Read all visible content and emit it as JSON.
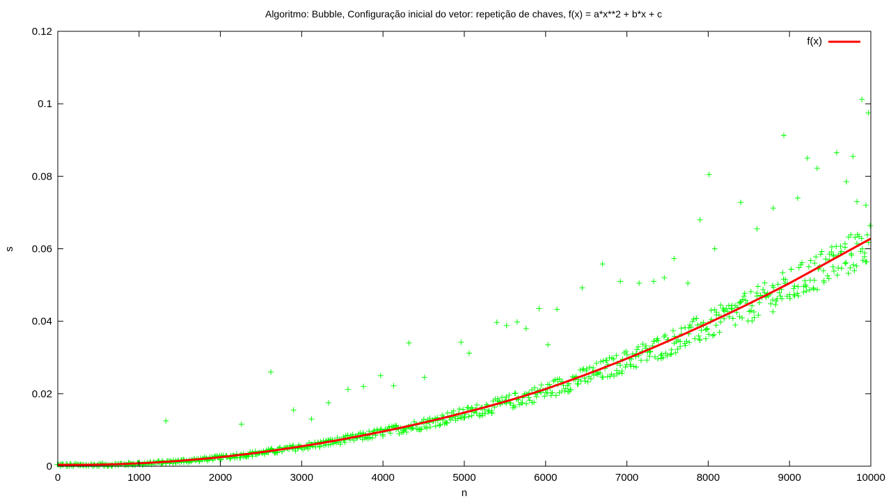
{
  "chart_data": {
    "type": "scatter",
    "title": "Algoritmo: Bubble, Configuração inicial do vetor: repetição de chaves, f(x) = a*x**2 + b*x + c",
    "xlabel": "n",
    "ylabel": "s",
    "xlim": [
      0,
      10000
    ],
    "ylim": [
      0,
      0.12
    ],
    "xticks": [
      "0",
      "1000",
      "2000",
      "3000",
      "4000",
      "5000",
      "6000",
      "7000",
      "8000",
      "9000",
      "10000"
    ],
    "yticks": [
      "0",
      "0.02",
      "0.04",
      "0.06",
      "0.08",
      "0.1",
      "0.12"
    ],
    "grid": false,
    "legend": {
      "position": "top-right",
      "entries": [
        "f(x)"
      ]
    },
    "colors": {
      "points": "#00ff00",
      "fit": "#ff0000"
    },
    "fit": {
      "name": "f(x)",
      "x": [
        0,
        1000,
        2000,
        3000,
        4000,
        5000,
        6000,
        7000,
        8000,
        9000,
        10000
      ],
      "y": [
        0.0004,
        0.0008,
        0.0025,
        0.0055,
        0.0096,
        0.0148,
        0.0213,
        0.0297,
        0.0395,
        0.0505,
        0.0628
      ]
    },
    "outliers": {
      "x": [
        1330,
        2260,
        2620,
        2900,
        3120,
        3330,
        3570,
        3760,
        3970,
        4130,
        4320,
        4510,
        4960,
        5060,
        5400,
        5520,
        5650,
        5760,
        5920,
        6030,
        6140,
        6450,
        6700,
        6920,
        7150,
        7330,
        7460,
        7580,
        7750,
        7900,
        8010,
        8080,
        8400,
        8600,
        8800,
        8930,
        9100,
        9220,
        9340,
        9520,
        9580,
        9700,
        9780,
        9830,
        9890,
        9940,
        9970
      ],
      "y": [
        0.0125,
        0.0116,
        0.026,
        0.0155,
        0.013,
        0.0175,
        0.0212,
        0.022,
        0.025,
        0.0222,
        0.034,
        0.0245,
        0.0342,
        0.0312,
        0.0397,
        0.0388,
        0.0398,
        0.038,
        0.0435,
        0.0335,
        0.0433,
        0.0492,
        0.0558,
        0.051,
        0.0505,
        0.051,
        0.052,
        0.0573,
        0.0505,
        0.068,
        0.0805,
        0.06,
        0.0728,
        0.0655,
        0.0712,
        0.0913,
        0.074,
        0.085,
        0.0822,
        0.0605,
        0.0865,
        0.0785,
        0.0855,
        0.073,
        0.1012,
        0.072,
        0.0975
      ]
    }
  }
}
